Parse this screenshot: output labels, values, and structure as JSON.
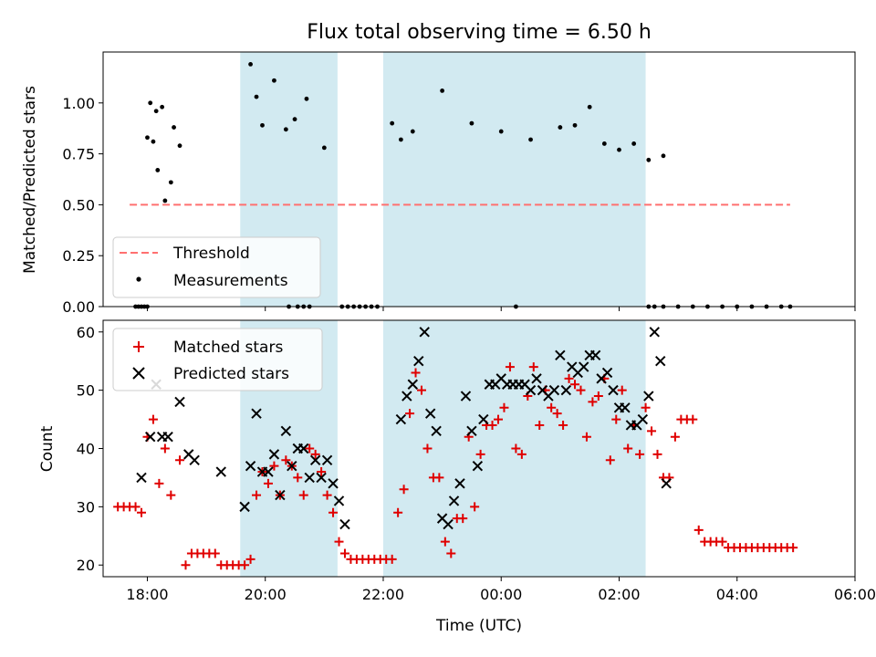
{
  "colors": {
    "threshold": "#ff7070",
    "measurement": "#000000",
    "matched": "#e00000",
    "predicted": "#000000",
    "shade": "#add8e6"
  },
  "chart_data": [
    {
      "type": "scatter",
      "title": "Flux total observing time = 6.50 h",
      "xlabel": "",
      "ylabel": "Matched/Predicted stars",
      "xlim": [
        -6.5,
        19.0
      ],
      "ylim": [
        0.0,
        1.25
      ],
      "yticks": [
        {
          "v": 0.0,
          "label": "0.00"
        },
        {
          "v": 0.25,
          "label": "0.25"
        },
        {
          "v": 0.5,
          "label": "0.50"
        },
        {
          "v": 0.75,
          "label": "0.75"
        },
        {
          "v": 1.0,
          "label": "1.00"
        }
      ],
      "shaded_intervals": [
        [
          -1.85,
          1.45
        ],
        [
          3.0,
          11.9
        ]
      ],
      "threshold": {
        "name": "Threshold",
        "value": 0.5,
        "x": [
          -5.6,
          16.8
        ]
      },
      "measurements": {
        "name": "Measurements",
        "x": [
          -5.0,
          -4.9,
          -4.8,
          -4.7,
          -4.65,
          -4.5,
          -4.4,
          -4.2,
          -4.1,
          -3.9,
          -1.5,
          -1.3,
          -1.1,
          -0.7,
          -0.3,
          0.0,
          0.4,
          1.0,
          3.3,
          3.6,
          4.0,
          5.0,
          6.0,
          7.0,
          8.0,
          9.0,
          9.5,
          10.0,
          10.5,
          11.0,
          11.5,
          12.0,
          12.5
        ],
        "y": [
          0.83,
          1.0,
          0.81,
          0.96,
          0.67,
          0.98,
          0.52,
          0.61,
          0.88,
          0.79,
          1.19,
          1.03,
          0.89,
          1.11,
          0.87,
          0.92,
          1.02,
          0.78,
          0.9,
          0.82,
          0.86,
          1.06,
          0.9,
          0.86,
          0.82,
          0.88,
          0.89,
          0.98,
          0.8,
          0.77,
          0.8,
          0.72,
          0.74
        ]
      },
      "zero_measurements": [
        -5.4,
        -5.3,
        -5.2,
        -5.1,
        -5.0,
        -0.2,
        0.1,
        0.3,
        0.5,
        1.6,
        1.8,
        2.0,
        2.2,
        2.4,
        2.6,
        2.8,
        7.5,
        12.0,
        12.2,
        12.5,
        13.0,
        13.5,
        14.0,
        14.5,
        15.0,
        15.5,
        16.0,
        16.5,
        16.8
      ],
      "legend": [
        "Threshold",
        "Measurements"
      ]
    },
    {
      "type": "scatter",
      "xlabel": "Time (UTC)",
      "ylabel": "Count",
      "xlim": [
        -6.5,
        19.0
      ],
      "ylim": [
        18.0,
        62.0
      ],
      "yticks": [
        20,
        30,
        40,
        50,
        60
      ],
      "xticks": [
        {
          "v": -5.0,
          "label": "18:00"
        },
        {
          "v": -1.0,
          "label": "20:00"
        },
        {
          "v": 3.0,
          "label": "22:00"
        },
        {
          "v": 7.0,
          "label": "00:00"
        },
        {
          "v": 11.0,
          "label": "02:00"
        },
        {
          "v": 15.0,
          "label": "04:00"
        },
        {
          "v": 19.0,
          "label": "06:00"
        }
      ],
      "shaded_intervals": [
        [
          -1.85,
          1.45
        ],
        [
          3.0,
          11.9
        ]
      ],
      "series": [
        {
          "name": "Matched stars",
          "x": [
            -6.0,
            -5.8,
            -5.6,
            -5.4,
            -5.2,
            -5.0,
            -4.8,
            -4.6,
            -4.4,
            -4.2,
            -3.9,
            -3.7,
            -3.5,
            -3.3,
            -3.1,
            -2.9,
            -2.7,
            -2.5,
            -2.3,
            -2.1,
            -1.9,
            -1.7,
            -1.5,
            -1.3,
            -1.1,
            -0.9,
            -0.7,
            -0.5,
            -0.3,
            -0.1,
            0.1,
            0.3,
            0.5,
            0.7,
            0.9,
            1.1,
            1.3,
            1.5,
            1.7,
            1.9,
            2.1,
            2.3,
            2.5,
            2.7,
            2.9,
            3.1,
            3.3,
            3.5,
            3.7,
            3.9,
            4.1,
            4.3,
            4.5,
            4.7,
            4.9,
            5.1,
            5.3,
            5.5,
            5.7,
            5.9,
            6.1,
            6.3,
            6.5,
            6.7,
            6.9,
            7.1,
            7.3,
            7.5,
            7.7,
            7.9,
            8.1,
            8.3,
            8.5,
            8.7,
            8.9,
            9.1,
            9.3,
            9.5,
            9.7,
            9.9,
            10.1,
            10.3,
            10.5,
            10.7,
            10.9,
            11.1,
            11.3,
            11.5,
            11.7,
            11.9,
            12.1,
            12.3,
            12.5,
            12.7,
            12.9,
            13.1,
            13.3,
            13.5,
            13.7,
            13.9,
            14.1,
            14.3,
            14.5,
            14.7,
            14.9,
            15.1,
            15.3,
            15.5,
            15.7,
            15.9,
            16.1,
            16.3,
            16.5,
            16.7,
            16.9
          ],
          "y": [
            30,
            30,
            30,
            30,
            29,
            42,
            45,
            34,
            40,
            32,
            38,
            20,
            22,
            22,
            22,
            22,
            22,
            20,
            20,
            20,
            20,
            20,
            21,
            32,
            36,
            34,
            37,
            32,
            38,
            37,
            35,
            32,
            40,
            39,
            36,
            32,
            29,
            24,
            22,
            21,
            21,
            21,
            21,
            21,
            21,
            21,
            21,
            29,
            33,
            46,
            53,
            50,
            40,
            35,
            35,
            24,
            22,
            28,
            28,
            42,
            30,
            39,
            44,
            44,
            45,
            47,
            54,
            40,
            39,
            49,
            54,
            44,
            50,
            47,
            46,
            44,
            52,
            51,
            50,
            42,
            48,
            49,
            52,
            38,
            45,
            50,
            40,
            44,
            39,
            47,
            43,
            39,
            35,
            35,
            42,
            45,
            45,
            45,
            26,
            24,
            24,
            24,
            24,
            23,
            23,
            23,
            23,
            23,
            23,
            23,
            23,
            23,
            23,
            23,
            23
          ]
        },
        {
          "name": "Predicted stars",
          "x": [
            -5.2,
            -4.9,
            -4.7,
            -4.5,
            -4.3,
            -3.9,
            -3.6,
            -3.4,
            -2.5,
            -1.7,
            -1.5,
            -1.3,
            -1.1,
            -0.9,
            -0.7,
            -0.5,
            -0.3,
            -0.1,
            0.1,
            0.3,
            0.5,
            0.7,
            0.9,
            1.1,
            1.3,
            1.5,
            1.7,
            3.6,
            3.8,
            4.0,
            4.2,
            4.4,
            4.6,
            4.8,
            5.0,
            5.2,
            5.4,
            5.6,
            5.8,
            6.0,
            6.2,
            6.4,
            6.6,
            6.8,
            7.0,
            7.2,
            7.4,
            7.6,
            7.8,
            8.0,
            8.2,
            8.4,
            8.6,
            8.8,
            9.0,
            9.2,
            9.4,
            9.6,
            9.8,
            10.0,
            10.2,
            10.4,
            10.6,
            10.8,
            11.0,
            11.2,
            11.4,
            11.6,
            11.8,
            12.0,
            12.2,
            12.4,
            12.6
          ],
          "y": [
            35,
            42,
            51,
            42,
            42,
            48,
            39,
            38,
            36,
            30,
            37,
            46,
            36,
            36,
            39,
            32,
            43,
            37,
            40,
            40,
            35,
            38,
            35,
            38,
            34,
            31,
            27,
            45,
            49,
            51,
            55,
            60,
            46,
            43,
            28,
            27,
            31,
            34,
            49,
            43,
            37,
            45,
            51,
            51,
            52,
            51,
            51,
            51,
            51,
            50,
            52,
            50,
            49,
            50,
            56,
            50,
            54,
            53,
            54,
            56,
            56,
            52,
            53,
            50,
            47,
            47,
            44,
            44,
            45,
            49,
            60,
            55,
            34
          ]
        }
      ],
      "legend": [
        "Matched stars",
        "Predicted stars"
      ]
    }
  ]
}
